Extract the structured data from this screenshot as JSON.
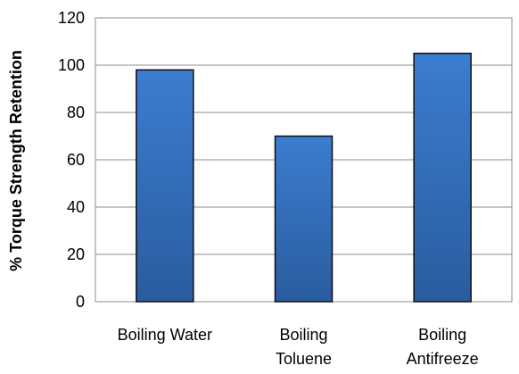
{
  "chart_data": {
    "type": "bar",
    "categories": [
      [
        "Boiling Water"
      ],
      [
        "Boiling",
        "Toluene"
      ],
      [
        "Boiling",
        "Antifreeze"
      ]
    ],
    "values": [
      98,
      70,
      105
    ],
    "title": "",
    "xlabel": "",
    "ylabel": "% Torque Strength Retention",
    "ylim": [
      0,
      120
    ],
    "yticks": [
      0,
      20,
      40,
      60,
      80,
      100,
      120
    ],
    "grid": true,
    "legend": "none",
    "colors": {
      "bar_top": "#3b7dd0",
      "bar_bottom": "#2a5c9e",
      "bar_stroke": "#111111",
      "grid": "#8c8c8c",
      "axis": "#8c8c8c"
    }
  }
}
